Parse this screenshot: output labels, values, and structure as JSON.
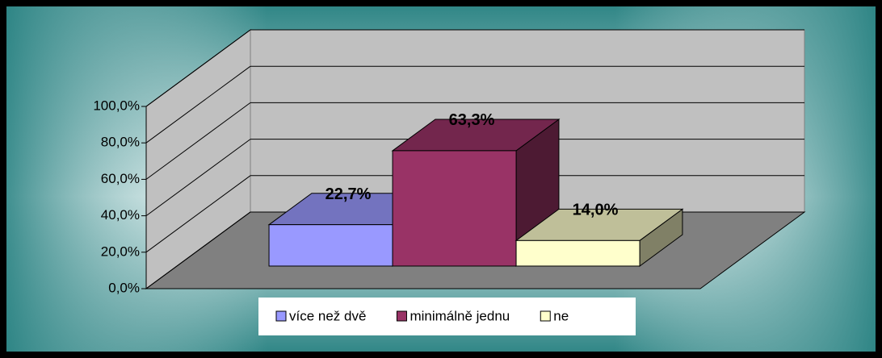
{
  "chart_data": {
    "type": "bar3d",
    "series": [
      {
        "name": "více než dvě",
        "color": "#9999ff",
        "values": [
          22.7
        ],
        "value_labels": [
          "22,7%"
        ]
      },
      {
        "name": "minimálně jednu",
        "color": "#993366",
        "values": [
          63.3
        ],
        "value_labels": [
          "63,3%"
        ]
      },
      {
        "name": "ne",
        "color": "#ffffcc",
        "values": [
          14.0
        ],
        "value_labels": [
          "14,0%"
        ]
      }
    ],
    "ylim": [
      0,
      100
    ],
    "yticks": [
      {
        "value": 0,
        "label": "0,0%"
      },
      {
        "value": 20,
        "label": "20,0%"
      },
      {
        "value": 40,
        "label": "40,0%"
      },
      {
        "value": 60,
        "label": "60,0%"
      },
      {
        "value": 80,
        "label": "80,0%"
      },
      {
        "value": 100,
        "label": "100,0%"
      }
    ],
    "grid": true,
    "legend": "bottom"
  }
}
